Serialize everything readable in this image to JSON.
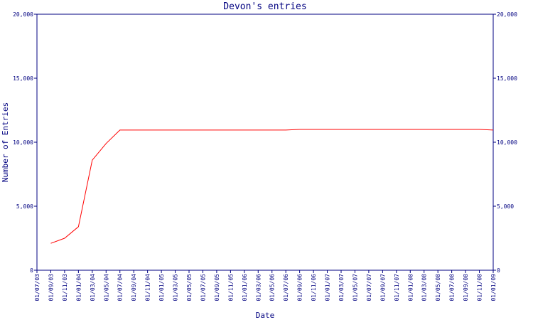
{
  "chart_data": {
    "type": "line",
    "title": "Devon's entries",
    "x_label": "Date",
    "y_label": "Number of Entries",
    "categories": [
      "01/07/03",
      "01/09/03",
      "01/11/03",
      "01/01/04",
      "01/03/04",
      "01/05/04",
      "01/07/04",
      "01/09/04",
      "01/11/04",
      "01/01/05",
      "01/03/05",
      "01/05/05",
      "01/07/05",
      "01/09/05",
      "01/11/05",
      "01/01/06",
      "01/03/06",
      "01/05/06",
      "01/07/06",
      "01/09/06",
      "01/11/06",
      "01/01/07",
      "01/03/07",
      "01/05/07",
      "01/07/07",
      "01/09/07",
      "01/11/07",
      "01/01/08",
      "01/03/08",
      "01/05/08",
      "01/07/08",
      "01/09/08",
      "01/11/08",
      "01/01/09"
    ],
    "values": [
      null,
      2100,
      2500,
      3400,
      8600,
      9900,
      10950,
      10950,
      10950,
      10950,
      10950,
      10950,
      10950,
      10950,
      10950,
      10950,
      10950,
      10950,
      10950,
      11000,
      11000,
      11000,
      11000,
      11000,
      11000,
      11000,
      11000,
      11000,
      11000,
      11000,
      11000,
      11000,
      11000,
      10950
    ],
    "color": "#ff0000",
    "ylim": [
      0,
      20000
    ],
    "yticks": [
      0,
      {
        "value": 5000,
        "label": "5,000"
      },
      {
        "value": 10000,
        "label": "10,000"
      },
      {
        "value": 15000,
        "label": "15,000"
      },
      {
        "value": 20000,
        "label": "20,000"
      }
    ]
  }
}
